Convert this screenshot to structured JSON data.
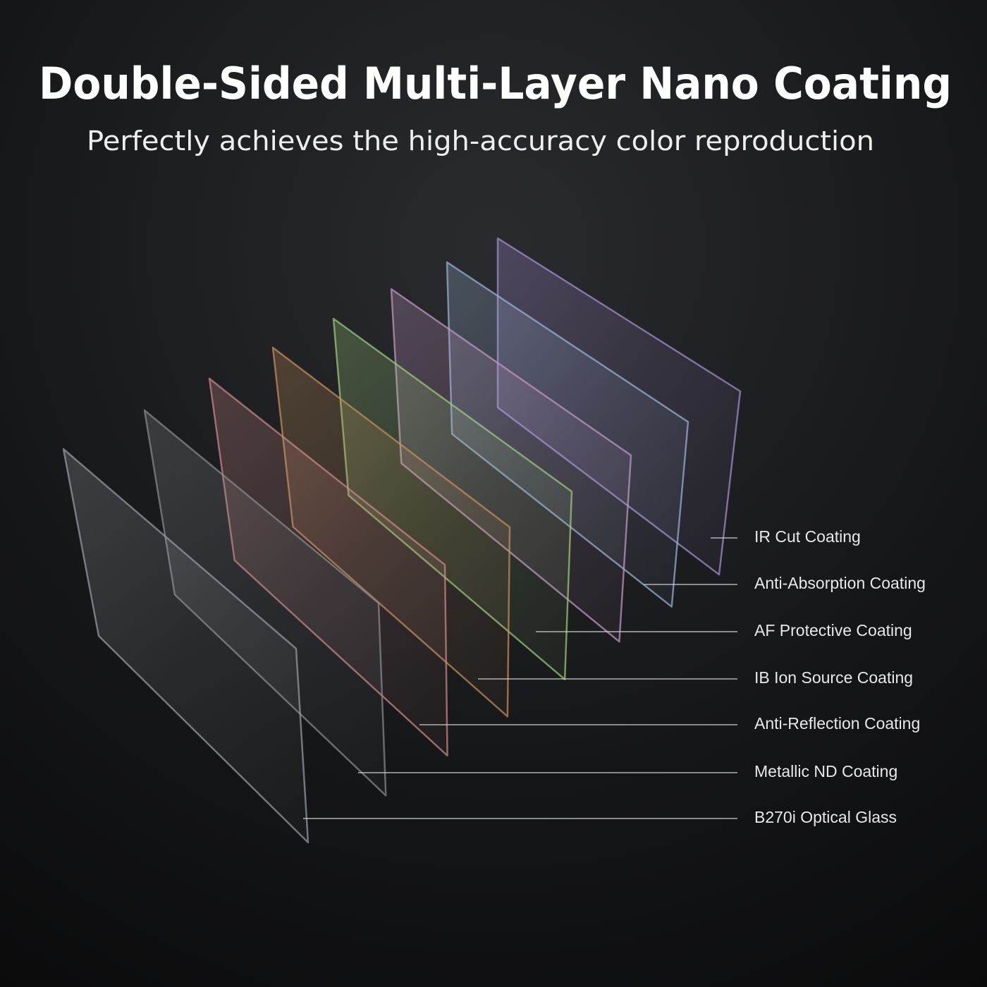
{
  "header": {
    "title": "Double-Sided Multi-Layer Nano Coating",
    "subtitle": "Perfectly achieves the high-accuracy color reproduction"
  },
  "layers": [
    "IR Cut Coating",
    "Anti-Absorption Coating",
    "AF Protective Coating",
    "IB Ion Source Coating",
    "Anti-Reflection Coating",
    "Metallic ND Coating",
    "B270i Optical Glass"
  ]
}
